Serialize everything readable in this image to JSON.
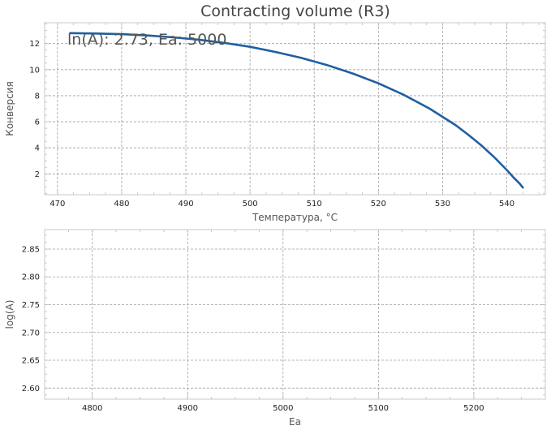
{
  "chart_data": [
    {
      "type": "line",
      "title": "Contracting volume (R3)",
      "annotation": "ln(A): 2.73, Ea: 5000",
      "xlabel": "Температура, °C",
      "ylabel": "Конверсия",
      "xlim": [
        468,
        546
      ],
      "ylim": [
        0.4,
        13.6
      ],
      "xticks": [
        470,
        480,
        490,
        500,
        510,
        520,
        530,
        540
      ],
      "yticks": [
        2,
        4,
        6,
        8,
        10,
        12
      ],
      "grid": true,
      "series": [
        {
          "color": "#1f5fa0",
          "x": [
            472,
            476,
            480,
            484,
            488,
            492,
            496,
            500,
            504,
            508,
            512,
            516,
            520,
            524,
            528,
            532,
            534,
            536,
            538,
            540,
            541,
            542,
            542.5
          ],
          "y": [
            12.8,
            12.77,
            12.72,
            12.62,
            12.48,
            12.3,
            12.05,
            11.75,
            11.35,
            10.9,
            10.35,
            9.7,
            8.95,
            8.05,
            7.0,
            5.75,
            5.0,
            4.2,
            3.3,
            2.3,
            1.75,
            1.25,
            0.95
          ]
        }
      ]
    },
    {
      "type": "line",
      "xlabel": "Ea",
      "ylabel": "log(A)",
      "xlim": [
        4750,
        5275
      ],
      "ylim": [
        2.58,
        2.885
      ],
      "xticks": [
        4800,
        4900,
        5000,
        5100,
        5200
      ],
      "yticks": [
        2.6,
        2.65,
        2.7,
        2.75,
        2.8,
        2.85
      ],
      "ytick_labels": [
        "2.60",
        "2.65",
        "2.70",
        "2.75",
        "2.80",
        "2.85"
      ],
      "grid": true,
      "series": []
    }
  ]
}
